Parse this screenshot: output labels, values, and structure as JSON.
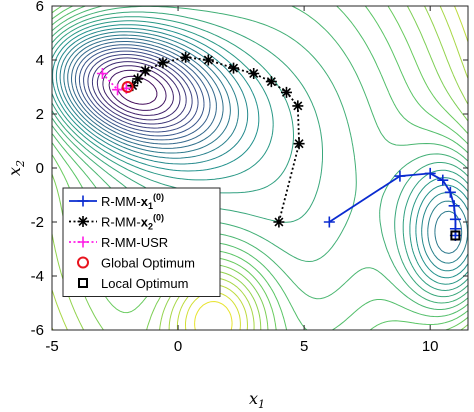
{
  "chart_data": {
    "type": "line",
    "title": "",
    "xlabel": "x",
    "xlabel_sub": "1",
    "ylabel": "x",
    "ylabel_sub": "2",
    "xlim": [
      -5,
      11.5
    ],
    "ylim": [
      -6,
      6
    ],
    "xticks": [
      -5,
      0,
      5,
      10
    ],
    "xtick_labels": [
      "-5",
      "0",
      "5",
      "10"
    ],
    "yticks": [
      -6,
      -4,
      -2,
      0,
      2,
      4,
      6
    ],
    "ytick_labels": [
      "-6",
      "-4",
      "-2",
      "0",
      "2",
      "4",
      "6"
    ],
    "grid": false,
    "legend_position": "lower-left",
    "background": "filled contour lines (viridis-like colormap)",
    "series": [
      {
        "name": "R-MM-x1(0)",
        "label_main": "R-MM-",
        "label_bold": "x",
        "label_sub": "1",
        "label_sup": "(0)",
        "color": "#0a2bd0",
        "marker": "plus",
        "line": "solid",
        "x": [
          6.0,
          8.8,
          10.0,
          10.5,
          10.8,
          10.95,
          11.0,
          11.0,
          11.0
        ],
        "y": [
          -2.0,
          -0.3,
          -0.2,
          -0.45,
          -0.9,
          -1.4,
          -1.9,
          -2.25,
          -2.5
        ]
      },
      {
        "name": "R-MM-x2(0)",
        "label_main": "R-MM-",
        "label_bold": "x",
        "label_sub": "2",
        "label_sup": "(0)",
        "color": "#000000",
        "marker": "asterisk",
        "line": "dotted",
        "x": [
          4.0,
          4.8,
          4.75,
          4.3,
          3.7,
          3.0,
          2.2,
          1.2,
          0.3,
          -0.6,
          -1.3,
          -1.6,
          -1.8
        ],
        "y": [
          -2.0,
          0.9,
          2.3,
          2.8,
          3.2,
          3.5,
          3.7,
          4.0,
          4.1,
          3.9,
          3.6,
          3.3,
          3.05
        ]
      },
      {
        "name": "R-MM-USR",
        "label_main": "R-MM-USR",
        "label_bold": "",
        "label_sub": "",
        "label_sup": "",
        "color": "#ff1ee6",
        "marker": "plus",
        "line": "dotted",
        "x": [
          -3.0,
          -2.4,
          -2.05
        ],
        "y": [
          3.5,
          2.9,
          2.95
        ]
      },
      {
        "name": "Global Optimum",
        "label_main": "Global Optimum",
        "label_bold": "",
        "label_sub": "",
        "label_sup": "",
        "color": "#e8141e",
        "marker": "circle",
        "line": "none",
        "x": [
          -2.0
        ],
        "y": [
          3.0
        ]
      },
      {
        "name": "Local Optimum",
        "label_main": "Local Optimum",
        "label_bold": "",
        "label_sub": "",
        "label_sup": "",
        "color": "#000000",
        "marker": "square",
        "line": "none",
        "x": [
          11.0
        ],
        "y": [
          -2.5
        ]
      }
    ]
  }
}
